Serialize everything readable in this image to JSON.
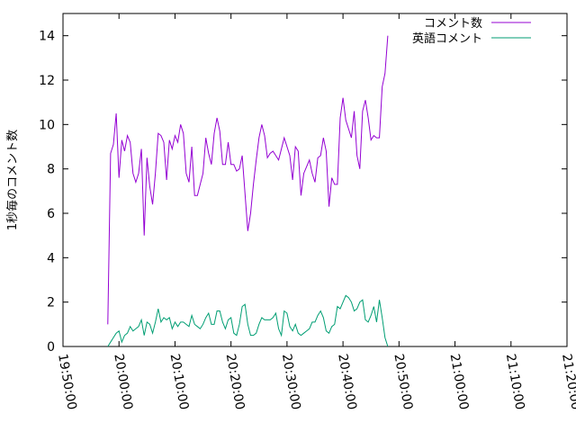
{
  "chart_data": {
    "type": "line",
    "title": "",
    "xlabel": "",
    "ylabel": "1秒毎のコメント数",
    "xlim": [
      "19:50:00",
      "21:20:00"
    ],
    "ylim": [
      0,
      15
    ],
    "xticks": [
      "19:50:00",
      "20:00:00",
      "20:10:00",
      "20:20:00",
      "20:30:00",
      "20:40:00",
      "20:50:00",
      "21:00:00",
      "21:10:00",
      "21:20:00"
    ],
    "yticks": [
      0,
      2,
      4,
      6,
      8,
      10,
      12,
      14
    ],
    "grid": false,
    "legend_position": "top-right",
    "series": [
      {
        "name": "コメント数",
        "color": "#9400d3",
        "points": [
          [
            "19:58:00",
            1.0
          ],
          [
            "19:58:30",
            8.7
          ],
          [
            "19:59:00",
            9.1
          ],
          [
            "19:59:30",
            10.5
          ],
          [
            "20:00:00",
            7.6
          ],
          [
            "20:00:30",
            9.3
          ],
          [
            "20:01:00",
            8.8
          ],
          [
            "20:01:30",
            9.5
          ],
          [
            "20:02:00",
            9.2
          ],
          [
            "20:02:30",
            7.8
          ],
          [
            "20:03:00",
            7.4
          ],
          [
            "20:03:30",
            7.8
          ],
          [
            "20:04:00",
            8.9
          ],
          [
            "20:04:30",
            5.0
          ],
          [
            "20:05:00",
            8.5
          ],
          [
            "20:05:30",
            7.2
          ],
          [
            "20:06:00",
            6.4
          ],
          [
            "20:06:30",
            7.8
          ],
          [
            "20:07:00",
            9.6
          ],
          [
            "20:07:30",
            9.5
          ],
          [
            "20:08:00",
            9.2
          ],
          [
            "20:08:30",
            7.5
          ],
          [
            "20:09:00",
            9.3
          ],
          [
            "20:09:30",
            8.9
          ],
          [
            "20:10:00",
            9.5
          ],
          [
            "20:10:30",
            9.2
          ],
          [
            "20:11:00",
            10.0
          ],
          [
            "20:11:30",
            9.6
          ],
          [
            "20:12:00",
            7.8
          ],
          [
            "20:12:30",
            7.4
          ],
          [
            "20:13:00",
            9.0
          ],
          [
            "20:13:30",
            6.8
          ],
          [
            "20:14:00",
            6.8
          ],
          [
            "20:14:30",
            7.3
          ],
          [
            "20:15:00",
            7.8
          ],
          [
            "20:15:30",
            9.4
          ],
          [
            "20:16:00",
            8.7
          ],
          [
            "20:16:30",
            8.2
          ],
          [
            "20:17:00",
            9.6
          ],
          [
            "20:17:30",
            10.3
          ],
          [
            "20:18:00",
            9.7
          ],
          [
            "20:18:30",
            8.2
          ],
          [
            "20:19:00",
            8.2
          ],
          [
            "20:19:30",
            9.2
          ],
          [
            "20:20:00",
            8.2
          ],
          [
            "20:20:30",
            8.2
          ],
          [
            "20:21:00",
            7.9
          ],
          [
            "20:21:30",
            8.0
          ],
          [
            "20:22:00",
            8.6
          ],
          [
            "20:22:30",
            6.9
          ],
          [
            "20:23:00",
            5.2
          ],
          [
            "20:23:30",
            6.0
          ],
          [
            "20:24:00",
            7.3
          ],
          [
            "20:24:30",
            8.4
          ],
          [
            "20:25:00",
            9.4
          ],
          [
            "20:25:30",
            10.0
          ],
          [
            "20:26:00",
            9.5
          ],
          [
            "20:26:30",
            8.5
          ],
          [
            "20:27:00",
            8.7
          ],
          [
            "20:27:30",
            8.8
          ],
          [
            "20:28:00",
            8.6
          ],
          [
            "20:28:30",
            8.4
          ],
          [
            "20:29:00",
            8.9
          ],
          [
            "20:29:30",
            9.4
          ],
          [
            "20:30:00",
            9.0
          ],
          [
            "20:30:30",
            8.6
          ],
          [
            "20:31:00",
            7.5
          ],
          [
            "20:31:30",
            9.0
          ],
          [
            "20:32:00",
            8.8
          ],
          [
            "20:32:30",
            6.8
          ],
          [
            "20:33:00",
            7.8
          ],
          [
            "20:33:30",
            8.1
          ],
          [
            "20:34:00",
            8.4
          ],
          [
            "20:34:30",
            7.8
          ],
          [
            "20:35:00",
            7.4
          ],
          [
            "20:35:30",
            8.5
          ],
          [
            "20:36:00",
            8.6
          ],
          [
            "20:36:30",
            9.4
          ],
          [
            "20:37:00",
            8.8
          ],
          [
            "20:37:30",
            6.3
          ],
          [
            "20:38:00",
            7.6
          ],
          [
            "20:38:30",
            7.3
          ],
          [
            "20:39:00",
            7.3
          ],
          [
            "20:39:30",
            10.3
          ],
          [
            "20:40:00",
            11.2
          ],
          [
            "20:40:30",
            10.2
          ],
          [
            "20:41:00",
            9.8
          ],
          [
            "20:41:30",
            9.4
          ],
          [
            "20:42:00",
            10.6
          ],
          [
            "20:42:30",
            8.6
          ],
          [
            "20:43:00",
            8.0
          ],
          [
            "20:43:30",
            10.6
          ],
          [
            "20:44:00",
            11.1
          ],
          [
            "20:44:30",
            10.3
          ],
          [
            "20:45:00",
            9.3
          ],
          [
            "20:45:30",
            9.5
          ],
          [
            "20:46:00",
            9.4
          ],
          [
            "20:46:30",
            9.4
          ],
          [
            "20:47:00",
            11.7
          ],
          [
            "20:47:30",
            12.3
          ],
          [
            "20:48:00",
            14.0
          ]
        ]
      },
      {
        "name": "英語コメント",
        "color": "#009e73",
        "points": [
          [
            "19:58:00",
            0.0
          ],
          [
            "19:58:30",
            0.2
          ],
          [
            "19:59:00",
            0.4
          ],
          [
            "19:59:30",
            0.6
          ],
          [
            "20:00:00",
            0.7
          ],
          [
            "20:00:30",
            0.2
          ],
          [
            "20:01:00",
            0.5
          ],
          [
            "20:01:30",
            0.6
          ],
          [
            "20:02:00",
            0.9
          ],
          [
            "20:02:30",
            0.7
          ],
          [
            "20:03:00",
            0.8
          ],
          [
            "20:03:30",
            0.9
          ],
          [
            "20:04:00",
            1.2
          ],
          [
            "20:04:30",
            0.5
          ],
          [
            "20:05:00",
            1.1
          ],
          [
            "20:05:30",
            1.0
          ],
          [
            "20:06:00",
            0.6
          ],
          [
            "20:06:30",
            1.1
          ],
          [
            "20:07:00",
            1.7
          ],
          [
            "20:07:30",
            1.1
          ],
          [
            "20:08:00",
            1.3
          ],
          [
            "20:08:30",
            1.2
          ],
          [
            "20:09:00",
            1.3
          ],
          [
            "20:09:30",
            0.8
          ],
          [
            "20:10:00",
            1.1
          ],
          [
            "20:10:30",
            0.9
          ],
          [
            "20:11:00",
            1.1
          ],
          [
            "20:11:30",
            1.1
          ],
          [
            "20:12:00",
            1.0
          ],
          [
            "20:12:30",
            0.9
          ],
          [
            "20:13:00",
            1.4
          ],
          [
            "20:13:30",
            1.0
          ],
          [
            "20:14:00",
            0.9
          ],
          [
            "20:14:30",
            0.8
          ],
          [
            "20:15:00",
            1.0
          ],
          [
            "20:15:30",
            1.3
          ],
          [
            "20:16:00",
            1.5
          ],
          [
            "20:16:30",
            1.0
          ],
          [
            "20:17:00",
            1.0
          ],
          [
            "20:17:30",
            1.6
          ],
          [
            "20:18:00",
            1.6
          ],
          [
            "20:18:30",
            1.1
          ],
          [
            "20:19:00",
            0.8
          ],
          [
            "20:19:30",
            1.2
          ],
          [
            "20:20:00",
            1.3
          ],
          [
            "20:20:30",
            0.6
          ],
          [
            "20:21:00",
            0.5
          ],
          [
            "20:21:30",
            1.0
          ],
          [
            "20:22:00",
            1.8
          ],
          [
            "20:22:30",
            1.9
          ],
          [
            "20:23:00",
            1.0
          ],
          [
            "20:23:30",
            0.5
          ],
          [
            "20:24:00",
            0.5
          ],
          [
            "20:24:30",
            0.6
          ],
          [
            "20:25:00",
            1.0
          ],
          [
            "20:25:30",
            1.3
          ],
          [
            "20:26:00",
            1.2
          ],
          [
            "20:26:30",
            1.2
          ],
          [
            "20:27:00",
            1.2
          ],
          [
            "20:27:30",
            1.3
          ],
          [
            "20:28:00",
            1.5
          ],
          [
            "20:28:30",
            0.8
          ],
          [
            "20:29:00",
            0.5
          ],
          [
            "20:29:30",
            1.6
          ],
          [
            "20:30:00",
            1.5
          ],
          [
            "20:30:30",
            0.9
          ],
          [
            "20:31:00",
            0.7
          ],
          [
            "20:31:30",
            1.0
          ],
          [
            "20:32:00",
            0.6
          ],
          [
            "20:32:30",
            0.5
          ],
          [
            "20:33:00",
            0.6
          ],
          [
            "20:33:30",
            0.7
          ],
          [
            "20:34:00",
            0.8
          ],
          [
            "20:34:30",
            1.1
          ],
          [
            "20:35:00",
            1.1
          ],
          [
            "20:35:30",
            1.4
          ],
          [
            "20:36:00",
            1.6
          ],
          [
            "20:36:30",
            1.3
          ],
          [
            "20:37:00",
            0.7
          ],
          [
            "20:37:30",
            0.6
          ],
          [
            "20:38:00",
            0.9
          ],
          [
            "20:38:30",
            1.0
          ],
          [
            "20:39:00",
            1.8
          ],
          [
            "20:39:30",
            1.7
          ],
          [
            "20:40:00",
            2.0
          ],
          [
            "20:40:30",
            2.3
          ],
          [
            "20:41:00",
            2.2
          ],
          [
            "20:41:30",
            2.0
          ],
          [
            "20:42:00",
            1.6
          ],
          [
            "20:42:30",
            1.7
          ],
          [
            "20:43:00",
            2.0
          ],
          [
            "20:43:30",
            2.1
          ],
          [
            "20:44:00",
            1.2
          ],
          [
            "20:44:30",
            1.1
          ],
          [
            "20:45:00",
            1.4
          ],
          [
            "20:45:30",
            1.8
          ],
          [
            "20:46:00",
            1.1
          ],
          [
            "20:46:30",
            2.1
          ],
          [
            "20:47:00",
            1.3
          ],
          [
            "20:47:30",
            0.4
          ],
          [
            "20:48:00",
            0.0
          ]
        ]
      }
    ]
  }
}
